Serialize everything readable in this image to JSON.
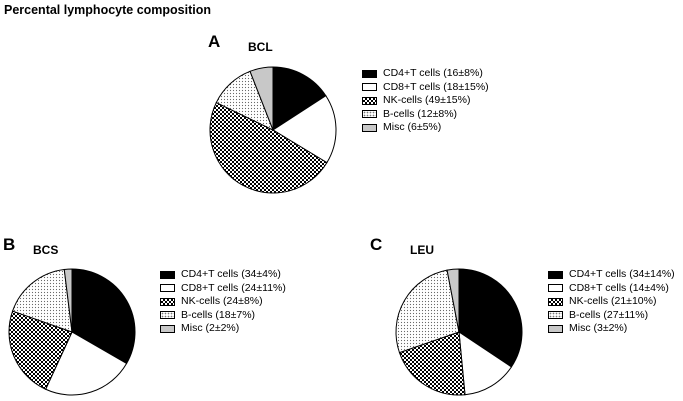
{
  "title": "Percental lymphocyte composition",
  "legend_styles": [
    "solid",
    "white",
    "checker",
    "dots",
    "gray"
  ],
  "chart_data": [
    {
      "type": "pie",
      "panel": "A",
      "title": "BCL",
      "categories": [
        "CD4+T cells",
        "CD8+T cells",
        "NK-cells",
        "B-cells",
        "Misc"
      ],
      "values": [
        16,
        18,
        49,
        12,
        6
      ],
      "legend": [
        "CD4+T cells (16±8%)",
        "CD8+T cells (18±15%)",
        "NK-cells (49±15%)",
        "B-cells (12±8%)",
        "Misc (6±5%)"
      ]
    },
    {
      "type": "pie",
      "panel": "B",
      "title": "BCS",
      "categories": [
        "CD4+T cells",
        "CD8+T cells",
        "NK-cells",
        "B-cells",
        "Misc"
      ],
      "values": [
        34,
        24,
        24,
        18,
        2
      ],
      "legend": [
        "CD4+T cells (34±4%)",
        "CD8+T cells (24±11%)",
        "NK-cells (24±8%)",
        "B-cells (18±7%)",
        "Misc (2±2%)"
      ]
    },
    {
      "type": "pie",
      "panel": "C",
      "title": "LEU",
      "categories": [
        "CD4+T cells",
        "CD8+T cells",
        "NK-cells",
        "B-cells",
        "Misc"
      ],
      "values": [
        34,
        14,
        21,
        27,
        3
      ],
      "legend": [
        "CD4+T cells (34±14%)",
        "CD8+T cells (14±4%)",
        "NK-cells (21±10%)",
        "B-cells (27±11%)",
        "Misc (3±2%)"
      ]
    }
  ]
}
